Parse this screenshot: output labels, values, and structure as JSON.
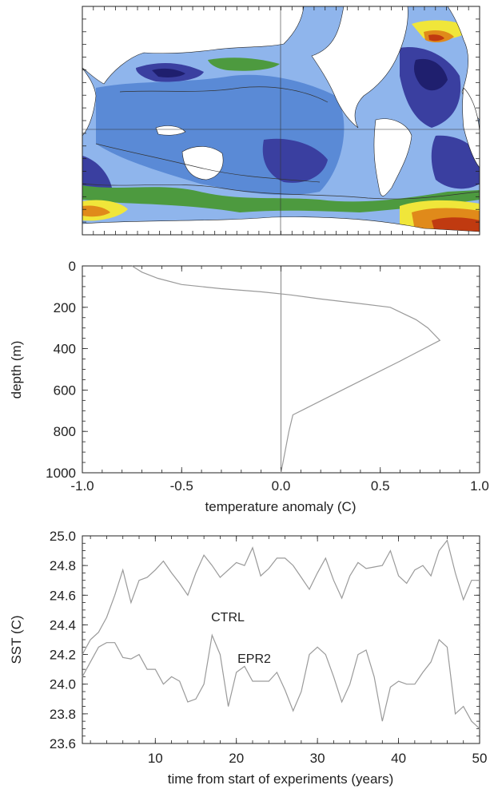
{
  "chart_data": [
    {
      "type": "heatmap",
      "title": "",
      "description": "global ocean map of filled contour anomaly field (no axis labels)",
      "colors": {
        "land": "#ffffff",
        "deep_negative": "#1f1f6e",
        "strong_negative": "#3a3fa0",
        "negative": "#5a8ad6",
        "weak_negative": "#8fb5ec",
        "near_zero": "#4d9a3f",
        "positive": "#f0e63a",
        "strong_positive": "#e08a1a",
        "max_positive": "#c03a10"
      }
    },
    {
      "type": "line",
      "title": "",
      "xlabel": "temperature anomaly (C)",
      "ylabel": "depth (m)",
      "xlim": [
        -1.0,
        1.0
      ],
      "ylim": [
        1000,
        0
      ],
      "xticks": [
        "-1.0",
        "-0.5",
        "0.0",
        "0.5",
        "1.0"
      ],
      "yticks": [
        "0",
        "200",
        "400",
        "600",
        "800",
        "1000"
      ],
      "series": [
        {
          "x": [
            -0.75,
            -0.7,
            -0.62,
            -0.5,
            -0.3,
            -0.1,
            0.05,
            0.2,
            0.38,
            0.55,
            0.68,
            0.74,
            0.8,
            0.6,
            0.35,
            0.06,
            0.04,
            0.02,
            0.0
          ],
          "y": [
            0,
            30,
            60,
            90,
            110,
            125,
            140,
            160,
            180,
            200,
            260,
            300,
            360,
            460,
            580,
            720,
            800,
            900,
            1000
          ]
        }
      ]
    },
    {
      "type": "line",
      "title": "",
      "xlabel": "time from start of experiments (years)",
      "ylabel": "SST (C)",
      "xlim": [
        1,
        50
      ],
      "ylim": [
        23.6,
        25.0
      ],
      "xticks": [
        "10",
        "20",
        "30",
        "40",
        "50"
      ],
      "yticks": [
        "23.6",
        "23.8",
        "24.0",
        "24.2",
        "24.4",
        "24.6",
        "24.8",
        "25.0"
      ],
      "series": [
        {
          "name": "CTRL",
          "x": [
            1,
            2,
            3,
            4,
            5,
            6,
            7,
            8,
            9,
            10,
            11,
            12,
            13,
            14,
            15,
            16,
            17,
            18,
            19,
            20,
            21,
            22,
            23,
            24,
            25,
            26,
            27,
            28,
            29,
            30,
            31,
            32,
            33,
            34,
            35,
            36,
            37,
            38,
            39,
            40,
            41,
            42,
            43,
            44,
            45,
            46,
            47,
            48,
            49,
            50
          ],
          "values": [
            24.2,
            24.3,
            24.35,
            24.45,
            24.6,
            24.77,
            24.55,
            24.7,
            24.72,
            24.77,
            24.83,
            24.75,
            24.68,
            24.6,
            24.75,
            24.87,
            24.8,
            24.72,
            24.77,
            24.82,
            24.8,
            24.92,
            24.73,
            24.78,
            24.85,
            24.85,
            24.8,
            24.72,
            24.64,
            24.75,
            24.85,
            24.7,
            24.58,
            24.73,
            24.82,
            24.78,
            24.79,
            24.8,
            24.9,
            24.73,
            24.68,
            24.77,
            24.8,
            24.73,
            24.9,
            24.97,
            24.75,
            24.57,
            24.7,
            24.7
          ]
        },
        {
          "name": "EPR2",
          "x": [
            1,
            2,
            3,
            4,
            5,
            6,
            7,
            8,
            9,
            10,
            11,
            12,
            13,
            14,
            15,
            16,
            17,
            18,
            19,
            20,
            21,
            22,
            23,
            24,
            25,
            26,
            27,
            28,
            29,
            30,
            31,
            32,
            33,
            34,
            35,
            36,
            37,
            38,
            39,
            40,
            41,
            42,
            43,
            44,
            45,
            46,
            47,
            48,
            49,
            50
          ],
          "values": [
            24.05,
            24.15,
            24.25,
            24.28,
            24.28,
            24.18,
            24.17,
            24.2,
            24.1,
            24.1,
            24.0,
            24.05,
            24.02,
            23.88,
            23.9,
            24.0,
            24.33,
            24.2,
            23.85,
            24.08,
            24.12,
            24.02,
            24.02,
            24.02,
            24.08,
            23.96,
            23.82,
            23.95,
            24.2,
            24.25,
            24.2,
            24.05,
            23.88,
            24.0,
            24.2,
            24.23,
            24.05,
            23.75,
            23.98,
            24.02,
            24.0,
            24.0,
            24.08,
            24.15,
            24.3,
            24.25,
            23.8,
            23.85,
            23.75,
            23.7
          ]
        }
      ]
    }
  ]
}
